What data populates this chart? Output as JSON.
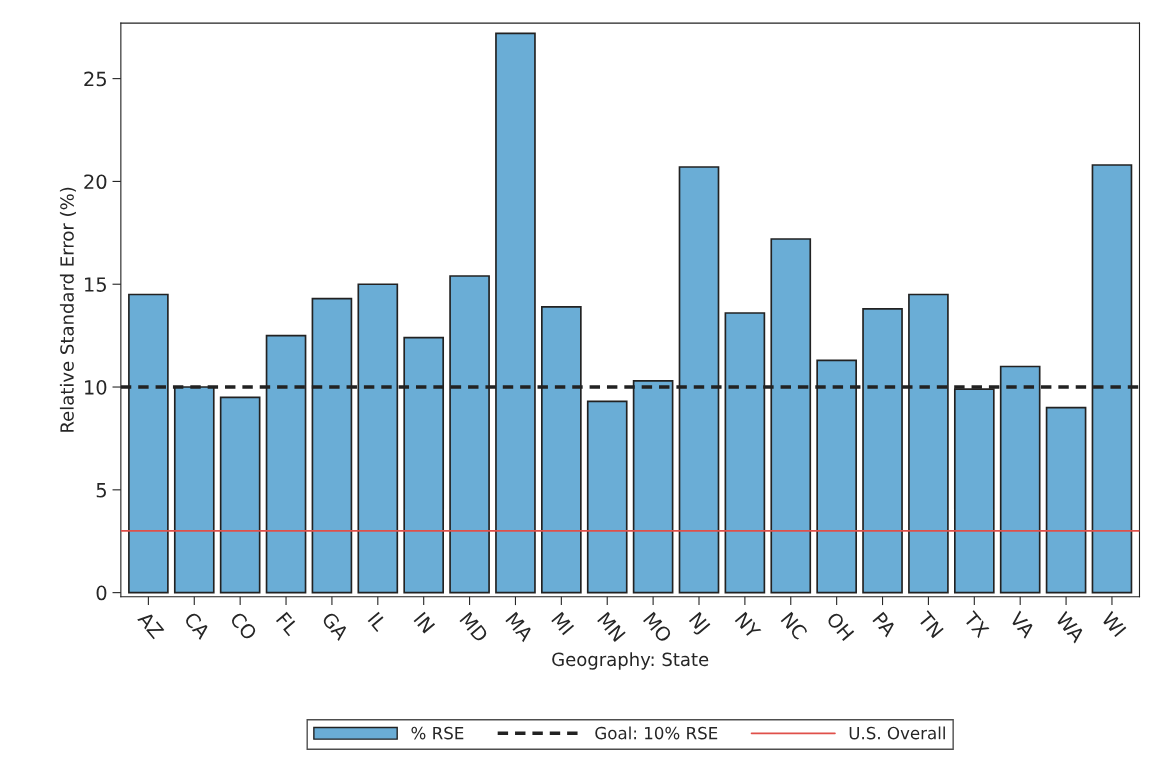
{
  "chart_data": {
    "type": "bar",
    "xlabel": "Geography: State",
    "ylabel": "Relative Standard Error (%)",
    "categories": [
      "AZ",
      "CA",
      "CO",
      "FL",
      "GA",
      "IL",
      "IN",
      "MD",
      "MA",
      "MI",
      "MN",
      "MO",
      "NJ",
      "NY",
      "NC",
      "OH",
      "PA",
      "TN",
      "TX",
      "VA",
      "WA",
      "WI"
    ],
    "series": [
      {
        "name": "% RSE",
        "color": "#6aadd6",
        "values": [
          14.5,
          10.0,
          9.5,
          12.5,
          14.3,
          15.0,
          12.4,
          15.4,
          27.2,
          13.9,
          9.3,
          10.3,
          20.7,
          13.6,
          17.2,
          11.3,
          13.8,
          14.5,
          9.9,
          11.0,
          9.0,
          20.8
        ]
      }
    ],
    "ylim": [
      -0.2,
      27.7
    ],
    "yticks": [
      0,
      5,
      10,
      15,
      20,
      25
    ],
    "ref_lines": [
      {
        "axis": "y",
        "value": 10,
        "label": "Goal: 10% RSE",
        "color": "#222222",
        "line_style": "dashed"
      },
      {
        "axis": "y",
        "value": 3.0,
        "label": "U.S. Overall",
        "color": "#e0504a",
        "line_style": "solid"
      }
    ],
    "legend": "bottom",
    "grid": false
  }
}
